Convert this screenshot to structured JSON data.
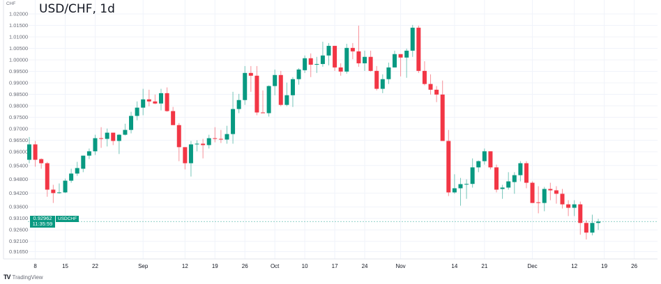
{
  "title": "USD/CHF, 1d",
  "unit": "CHF",
  "colors": {
    "up": "#089981",
    "down": "#F23645",
    "grid": "#f0f3fa",
    "axis_text": "#6a6d78"
  },
  "price_tag": {
    "symbol": "USDCHF",
    "price": "0.92962",
    "countdown": "11:35:59"
  },
  "branding": "TradingView",
  "chart_data": {
    "type": "candlestick",
    "title": "USD/CHF, 1d",
    "ylabel": "CHF",
    "ylim": [
      0.9145,
      1.0215
    ],
    "grid": true,
    "y_ticks": [
      "1.02000",
      "1.01500",
      "1.01000",
      "1.00500",
      "1.00000",
      "0.99500",
      "0.99000",
      "0.98500",
      "0.98000",
      "0.97500",
      "0.97000",
      "0.96500",
      "0.96000",
      "0.95400",
      "0.94800",
      "0.94200",
      "0.93600",
      "0.93100",
      "0.92600",
      "0.92100",
      "0.91650"
    ],
    "x_ticks": [
      {
        "label": "8",
        "date": "2022-08-08"
      },
      {
        "label": "15",
        "date": "2022-08-15"
      },
      {
        "label": "22",
        "date": "2022-08-22"
      },
      {
        "label": "Sep",
        "date": "2022-09-01"
      },
      {
        "label": "12",
        "date": "2022-09-12"
      },
      {
        "label": "19",
        "date": "2022-09-19"
      },
      {
        "label": "26",
        "date": "2022-09-26"
      },
      {
        "label": "Oct",
        "date": "2022-10-03"
      },
      {
        "label": "10",
        "date": "2022-10-10"
      },
      {
        "label": "17",
        "date": "2022-10-17"
      },
      {
        "label": "24",
        "date": "2022-10-24"
      },
      {
        "label": "Nov",
        "date": "2022-11-01"
      },
      {
        "label": "14",
        "date": "2022-11-14"
      },
      {
        "label": "21",
        "date": "2022-11-21"
      },
      {
        "label": "Dec",
        "date": "2022-12-01"
      },
      {
        "label": "12",
        "date": "2022-12-12"
      },
      {
        "label": "19",
        "date": "2022-12-19"
      },
      {
        "label": "26",
        "date": "2022-12-26"
      }
    ],
    "last_price": 0.92962,
    "columns": [
      "date",
      "open",
      "high",
      "low",
      "close"
    ],
    "candles": [
      [
        "2022-08-05",
        0.9565,
        0.9664,
        0.955,
        0.9632
      ],
      [
        "2022-08-08",
        0.9632,
        0.9647,
        0.9535,
        0.9565
      ],
      [
        "2022-08-09",
        0.9568,
        0.9571,
        0.9526,
        0.955
      ],
      [
        "2022-08-10",
        0.955,
        0.9556,
        0.9404,
        0.9435
      ],
      [
        "2022-08-11",
        0.9435,
        0.9456,
        0.9377,
        0.942
      ],
      [
        "2022-08-12",
        0.942,
        0.9462,
        0.9417,
        0.9423
      ],
      [
        "2022-08-15",
        0.9423,
        0.9483,
        0.942,
        0.9474
      ],
      [
        "2022-08-16",
        0.9474,
        0.9526,
        0.9465,
        0.9505
      ],
      [
        "2022-08-17",
        0.9505,
        0.9556,
        0.9495,
        0.9529
      ],
      [
        "2022-08-18",
        0.9526,
        0.9583,
        0.9511,
        0.9583
      ],
      [
        "2022-08-19",
        0.9583,
        0.9614,
        0.9568,
        0.9602
      ],
      [
        "2022-08-22",
        0.9602,
        0.9674,
        0.9586,
        0.9659
      ],
      [
        "2022-08-23",
        0.9659,
        0.9707,
        0.9617,
        0.9656
      ],
      [
        "2022-08-24",
        0.9656,
        0.9701,
        0.9623,
        0.9683
      ],
      [
        "2022-08-25",
        0.9683,
        0.9683,
        0.9629,
        0.9647
      ],
      [
        "2022-08-26",
        0.9647,
        0.9677,
        0.959,
        0.9674
      ],
      [
        "2022-08-29",
        0.9674,
        0.9722,
        0.9671,
        0.9695
      ],
      [
        "2022-08-30",
        0.9695,
        0.9774,
        0.968,
        0.9756
      ],
      [
        "2022-08-31",
        0.9756,
        0.9819,
        0.9737,
        0.9792
      ],
      [
        "2022-09-01",
        0.9792,
        0.9874,
        0.9759,
        0.9828
      ],
      [
        "2022-09-02",
        0.9828,
        0.987,
        0.9798,
        0.9819
      ],
      [
        "2022-09-05",
        0.9819,
        0.9849,
        0.9807,
        0.981
      ],
      [
        "2022-09-06",
        0.981,
        0.9874,
        0.978,
        0.9855
      ],
      [
        "2022-09-07",
        0.9855,
        0.988,
        0.9774,
        0.9777
      ],
      [
        "2022-09-08",
        0.9777,
        0.9795,
        0.9716,
        0.9716
      ],
      [
        "2022-09-09",
        0.9716,
        0.9725,
        0.9559,
        0.962
      ],
      [
        "2022-09-12",
        0.962,
        0.962,
        0.9523,
        0.955
      ],
      [
        "2022-09-13",
        0.955,
        0.9647,
        0.9492,
        0.9632
      ],
      [
        "2022-09-14",
        0.9632,
        0.965,
        0.9602,
        0.9635
      ],
      [
        "2022-09-15",
        0.9635,
        0.9656,
        0.9571,
        0.9629
      ],
      [
        "2022-09-16",
        0.9629,
        0.9674,
        0.9614,
        0.9659
      ],
      [
        "2022-09-19",
        0.9659,
        0.9707,
        0.9641,
        0.9656
      ],
      [
        "2022-09-20",
        0.9656,
        0.9695,
        0.9638,
        0.9653
      ],
      [
        "2022-09-21",
        0.9653,
        0.9713,
        0.9635,
        0.9677
      ],
      [
        "2022-09-22",
        0.9677,
        0.9861,
        0.9635,
        0.9786
      ],
      [
        "2022-09-23",
        0.9786,
        0.9852,
        0.9768,
        0.9825
      ],
      [
        "2022-09-26",
        0.9825,
        0.9973,
        0.9804,
        0.9943
      ],
      [
        "2022-09-27",
        0.9943,
        0.9973,
        0.9861,
        0.9931
      ],
      [
        "2022-09-28",
        0.9931,
        0.9973,
        0.9759,
        0.9771
      ],
      [
        "2022-09-29",
        0.9771,
        0.9867,
        0.9768,
        0.9768
      ],
      [
        "2022-09-30",
        0.9768,
        0.9889,
        0.9753,
        0.9886
      ],
      [
        "2022-10-03",
        0.9886,
        0.9958,
        0.9846,
        0.9934
      ],
      [
        "2022-10-04",
        0.9934,
        0.9952,
        0.9798,
        0.9804
      ],
      [
        "2022-10-05",
        0.9804,
        0.9901,
        0.9798,
        0.9846
      ],
      [
        "2022-10-06",
        0.9846,
        0.9925,
        0.9795,
        0.9916
      ],
      [
        "2022-10-07",
        0.9916,
        0.9964,
        0.9892,
        0.9958
      ],
      [
        "2022-10-10",
        0.9955,
        1.0019,
        0.9943,
        1.0007
      ],
      [
        "2022-10-11",
        1.0007,
        1.0028,
        0.9925,
        0.9979
      ],
      [
        "2022-10-12",
        0.9979,
        1.0013,
        0.9943,
        0.9982
      ],
      [
        "2022-10-13",
        0.9982,
        1.0079,
        0.997,
        1.0019
      ],
      [
        "2022-10-14",
        1.0019,
        1.0073,
        0.9976,
        1.0061
      ],
      [
        "2022-10-17",
        1.0061,
        1.0061,
        0.9952,
        0.9967
      ],
      [
        "2022-10-18",
        0.9967,
        0.9985,
        0.9931,
        0.9949
      ],
      [
        "2022-10-19",
        0.9949,
        1.007,
        0.994,
        1.0052
      ],
      [
        "2022-10-20",
        1.0052,
        1.0073,
        1.0003,
        1.0037
      ],
      [
        "2022-10-21",
        1.0037,
        1.0149,
        0.997,
        0.9985
      ],
      [
        "2022-10-24",
        0.9985,
        1.004,
        0.9952,
        1.0013
      ],
      [
        "2022-10-25",
        1.0013,
        1.004,
        0.9949,
        0.9952
      ],
      [
        "2022-10-26",
        0.9952,
        0.9973,
        0.9867,
        0.9874
      ],
      [
        "2022-10-27",
        0.9874,
        0.9937,
        0.9855,
        0.9916
      ],
      [
        "2022-10-28",
        0.9916,
        0.9988,
        0.9895,
        0.9967
      ],
      [
        "2022-10-31",
        0.9967,
        1.004,
        0.9967,
        1.0025
      ],
      [
        "2022-11-01",
        1.0025,
        1.0025,
        0.9928,
        1.001
      ],
      [
        "2022-11-02",
        1.001,
        1.0049,
        0.9922,
        1.004
      ],
      [
        "2022-11-03",
        1.004,
        1.0152,
        1.0013,
        1.014
      ],
      [
        "2022-11-04",
        1.014,
        1.0149,
        0.9943,
        0.9952
      ],
      [
        "2022-11-07",
        0.9952,
        0.9994,
        0.9889,
        0.9895
      ],
      [
        "2022-11-08",
        0.9895,
        0.9937,
        0.9849,
        0.987
      ],
      [
        "2022-11-09",
        0.987,
        0.9886,
        0.9816,
        0.9849
      ],
      [
        "2022-11-10",
        0.9849,
        0.991,
        0.9647,
        0.9647
      ],
      [
        "2022-11-11",
        0.9647,
        0.9695,
        0.9407,
        0.9423
      ],
      [
        "2022-11-14",
        0.9423,
        0.9502,
        0.9417,
        0.9441
      ],
      [
        "2022-11-15",
        0.9441,
        0.9486,
        0.9365,
        0.9459
      ],
      [
        "2022-11-16",
        0.9459,
        0.948,
        0.9395,
        0.946
      ],
      [
        "2022-11-17",
        0.946,
        0.9571,
        0.9444,
        0.9532
      ],
      [
        "2022-11-18",
        0.9532,
        0.9562,
        0.9511,
        0.9559
      ],
      [
        "2022-11-21",
        0.9559,
        0.9614,
        0.9544,
        0.9602
      ],
      [
        "2022-11-22",
        0.9602,
        0.9602,
        0.9523,
        0.9532
      ],
      [
        "2022-11-23",
        0.9532,
        0.9544,
        0.9423,
        0.9435
      ],
      [
        "2022-11-24",
        0.9438,
        0.9456,
        0.9395,
        0.9444
      ],
      [
        "2022-11-25",
        0.9444,
        0.9511,
        0.9435,
        0.9471
      ],
      [
        "2022-11-28",
        0.9468,
        0.9511,
        0.9417,
        0.9498
      ],
      [
        "2022-11-29",
        0.9498,
        0.9559,
        0.9471,
        0.955
      ],
      [
        "2022-11-30",
        0.955,
        0.9559,
        0.9441,
        0.9465
      ],
      [
        "2022-12-01",
        0.9465,
        0.9471,
        0.9377,
        0.9377
      ],
      [
        "2022-12-02",
        0.938,
        0.945,
        0.9332,
        0.9377
      ],
      [
        "2022-12-05",
        0.9377,
        0.9447,
        0.9341,
        0.9438
      ],
      [
        "2022-12-06",
        0.9438,
        0.9465,
        0.9389,
        0.9432
      ],
      [
        "2022-12-07",
        0.9432,
        0.945,
        0.9374,
        0.9417
      ],
      [
        "2022-12-08",
        0.9417,
        0.9438,
        0.9353,
        0.9371
      ],
      [
        "2022-12-09",
        0.9371,
        0.9389,
        0.932,
        0.9356
      ],
      [
        "2022-12-12",
        0.9356,
        0.9389,
        0.932,
        0.9371
      ],
      [
        "2022-12-13",
        0.9371,
        0.9383,
        0.9239,
        0.929
      ],
      [
        "2022-12-14",
        0.929,
        0.9302,
        0.9218,
        0.9248
      ],
      [
        "2022-12-15",
        0.9248,
        0.9326,
        0.9236,
        0.929
      ],
      [
        "2022-12-16",
        0.929,
        0.9308,
        0.926,
        0.9296
      ]
    ]
  }
}
